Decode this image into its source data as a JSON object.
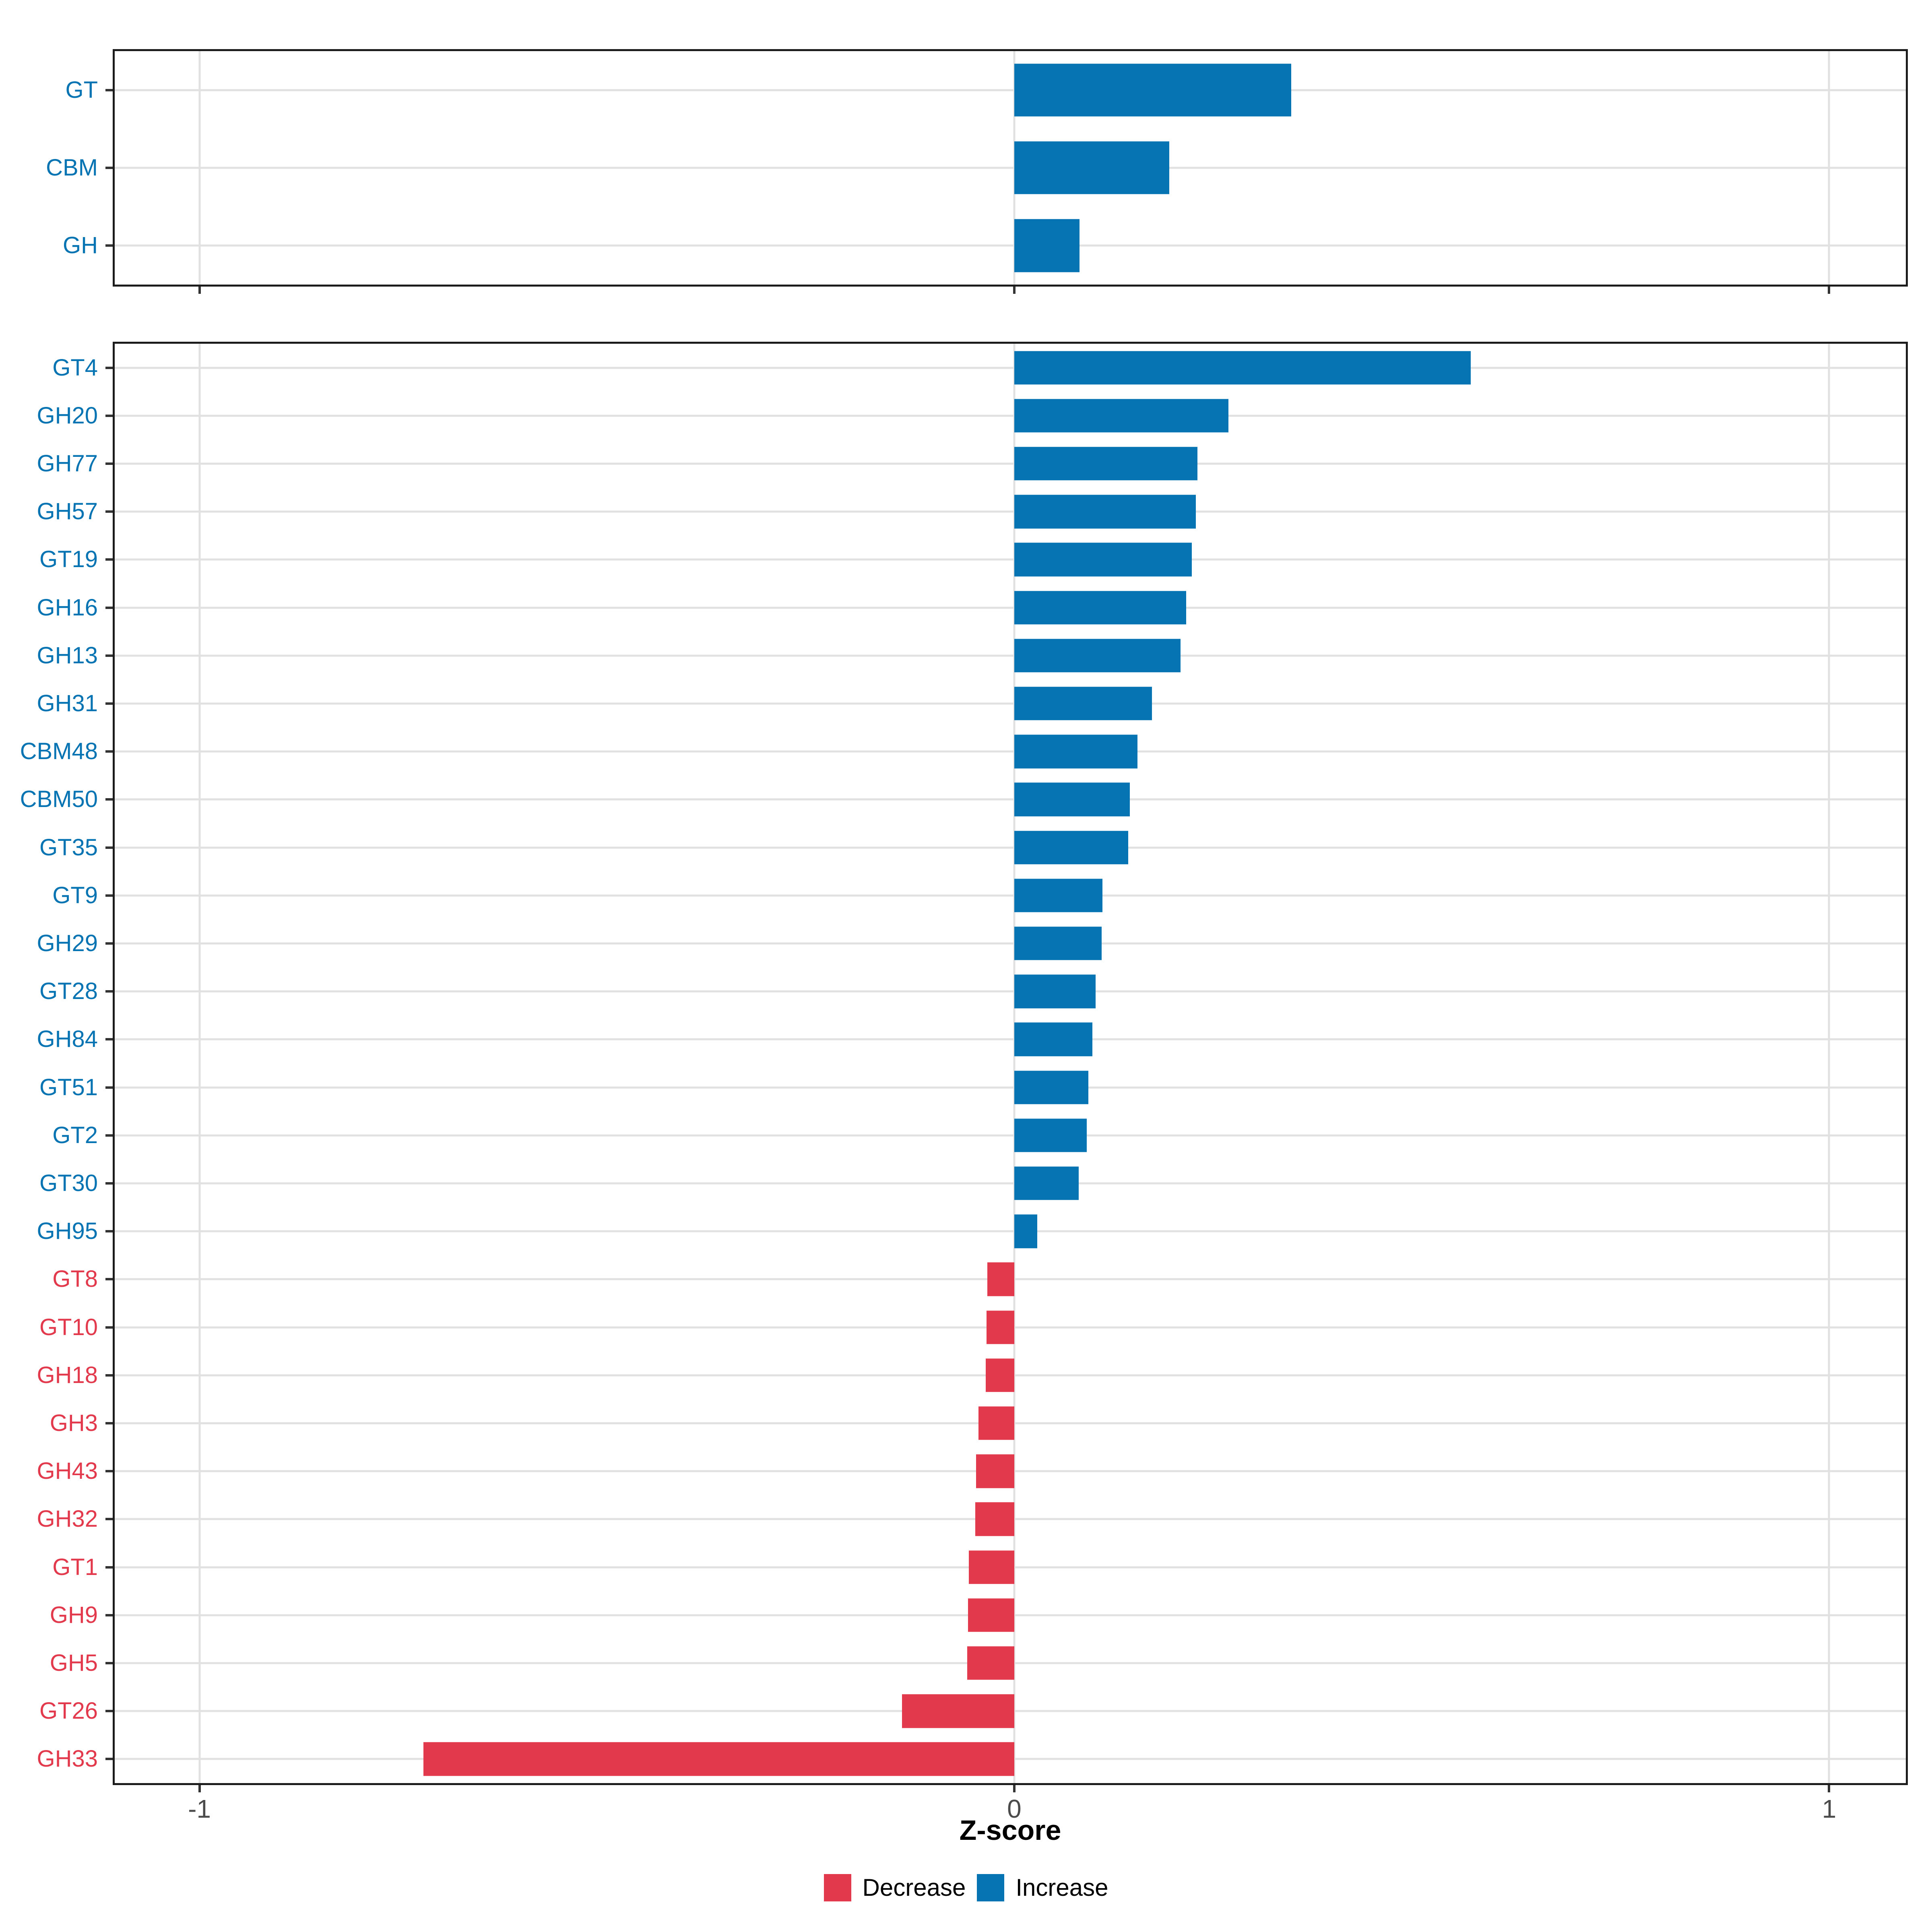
{
  "figure": {
    "x_axis_title": "Z-score",
    "x_tick_labels": [
      "-1",
      "0",
      "1"
    ]
  },
  "legend": {
    "items": [
      {
        "label": "Decrease",
        "key": "decrease"
      },
      {
        "label": "Increase",
        "key": "increase"
      }
    ]
  },
  "colors": {
    "increase": "#0673b2",
    "decrease": "#e23a4c",
    "gridline": "#e1e1e1",
    "panel_border": "#1c1c1c",
    "tick": "#333333",
    "axis_text": "#4b4b4b",
    "background": "#ffffff"
  },
  "chart_data": [
    {
      "type": "bar",
      "orientation": "horizontal",
      "panel": "top",
      "title": "",
      "xlabel": "Z-score",
      "xlim": [
        -1.1,
        1.1
      ],
      "x_ticks": [
        -1,
        0,
        1
      ],
      "grid": "major-only",
      "legend_position": "bottom",
      "show_x_tick_labels": false,
      "categories": [
        "GT",
        "CBM",
        "GH"
      ],
      "values": [
        0.34,
        0.19,
        0.08
      ]
    },
    {
      "type": "bar",
      "orientation": "horizontal",
      "panel": "bottom",
      "title": "",
      "xlabel": "Z-score",
      "xlim": [
        -1.1,
        1.1
      ],
      "x_ticks": [
        -1,
        0,
        1
      ],
      "grid": "major-only",
      "legend_position": "bottom",
      "show_x_tick_labels": true,
      "categories": [
        "GT4",
        "GH20",
        "GH77",
        "GH57",
        "GT19",
        "GH16",
        "GH13",
        "GH31",
        "CBM48",
        "CBM50",
        "GT35",
        "GT9",
        "GH29",
        "GT28",
        "GH84",
        "GT51",
        "GT2",
        "GT30",
        "GH95",
        "GT8",
        "GT10",
        "GH18",
        "GH3",
        "GH43",
        "GH32",
        "GT1",
        "GH9",
        "GH5",
        "GT26",
        "GH33"
      ],
      "values": [
        0.56,
        0.263,
        0.225,
        0.223,
        0.218,
        0.211,
        0.204,
        0.169,
        0.151,
        0.142,
        0.14,
        0.108,
        0.107,
        0.1,
        0.096,
        0.091,
        0.089,
        0.079,
        0.028,
        -0.033,
        -0.034,
        -0.035,
        -0.044,
        -0.047,
        -0.048,
        -0.056,
        -0.057,
        -0.058,
        -0.138,
        -0.725
      ]
    }
  ]
}
